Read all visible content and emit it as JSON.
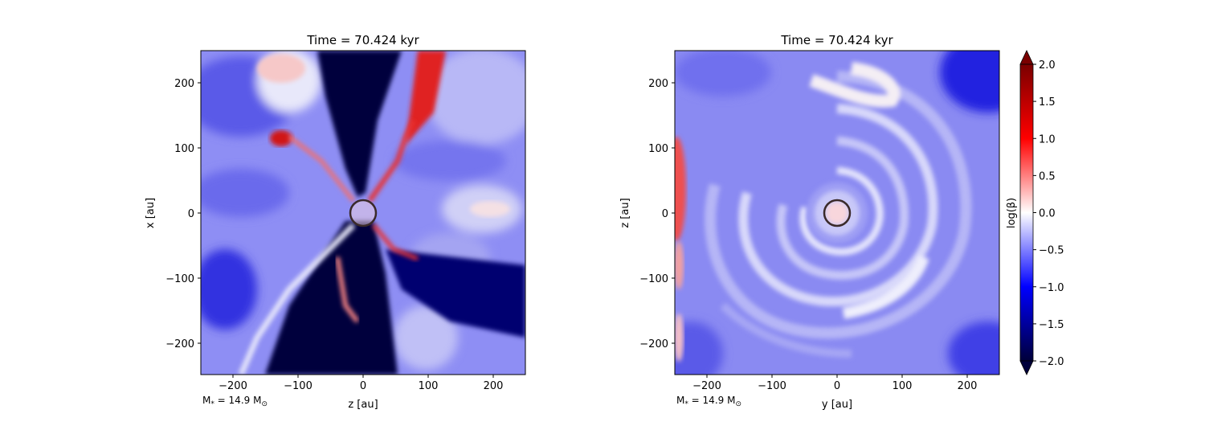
{
  "chart_data": [
    {
      "type": "heatmap",
      "panel": "left",
      "title": "Time = 70.424 kyr",
      "xlabel": "z [au]",
      "ylabel": "x [au]",
      "xlim": [
        -250,
        250
      ],
      "ylim": [
        -250,
        250
      ],
      "xticks": [
        -200,
        -100,
        0,
        100,
        200
      ],
      "yticks": [
        -200,
        -100,
        0,
        100,
        200
      ],
      "xtick_labels": [
        "−200",
        "−100",
        "0",
        "100",
        "200"
      ],
      "ytick_labels": [
        "−200",
        "−100",
        "0",
        "100",
        "200"
      ],
      "annotation": {
        "label_main": "M",
        "label_sub": "*",
        "label_eq": " = 14.9 M",
        "label_sun": "⊙"
      },
      "sink_circle": {
        "x": 0,
        "y": 0,
        "r": 20
      },
      "field_description": "bipolar outflow: low log(beta) cone along x, red filament arms along outflow edges"
    },
    {
      "type": "heatmap",
      "panel": "right",
      "title": "Time = 70.424 kyr",
      "xlabel": "y [au]",
      "ylabel": "z [au]",
      "xlim": [
        -250,
        250
      ],
      "ylim": [
        -250,
        250
      ],
      "xticks": [
        -200,
        -100,
        0,
        100,
        200
      ],
      "yticks": [
        -200,
        -100,
        0,
        100,
        200
      ],
      "xtick_labels": [
        "−200",
        "−100",
        "0",
        "100",
        "200"
      ],
      "ytick_labels": [
        "−200",
        "−100",
        "0",
        "100",
        "200"
      ],
      "annotation": {
        "label_main": "M",
        "label_sub": "*",
        "label_eq": " = 14.9 M",
        "label_sun": "⊙"
      },
      "sink_circle": {
        "x": 0,
        "y": 0,
        "r": 20
      },
      "field_description": "spiral disk pattern of log(beta) around central sink"
    }
  ],
  "colorbar": {
    "label": "log(β)",
    "vmin": -2.0,
    "vmax": 2.0,
    "ticks": [
      2.0,
      1.5,
      1.0,
      0.5,
      0.0,
      -0.5,
      -1.0,
      -1.5,
      -2.0
    ],
    "tick_labels": [
      "2.0",
      "1.5",
      "1.0",
      "0.5",
      "0.0",
      "−0.5",
      "−1.0",
      "−1.5",
      "−2.0"
    ],
    "colormap": "seismic",
    "extend": "both",
    "colors": {
      "min": "#00003a",
      "low": "#0000ff",
      "mid": "#ffffff",
      "high": "#ff0000",
      "max": "#7a0000"
    }
  }
}
